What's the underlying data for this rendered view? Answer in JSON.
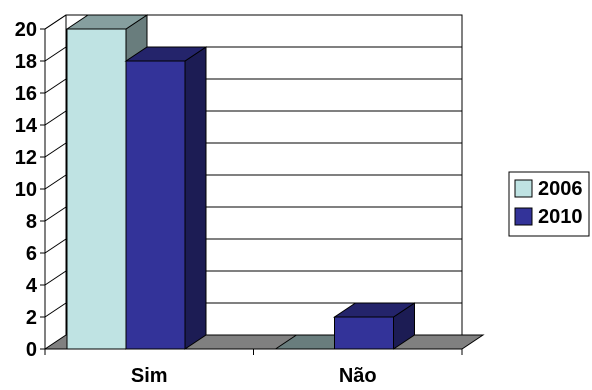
{
  "chart_data": {
    "type": "bar",
    "style": "3d-clustered",
    "categories": [
      "Sim",
      "Não"
    ],
    "series": [
      {
        "name": "2006",
        "values": [
          20,
          0
        ],
        "color": "#BFE3E3"
      },
      {
        "name": "2010",
        "values": [
          18,
          2
        ],
        "color": "#333399"
      }
    ],
    "yticks": [
      0,
      2,
      4,
      6,
      8,
      10,
      12,
      14,
      16,
      18,
      20
    ],
    "ylim": [
      0,
      20
    ],
    "grid": true,
    "legend_position": "right",
    "title": "",
    "xlabel": "",
    "ylabel": ""
  }
}
